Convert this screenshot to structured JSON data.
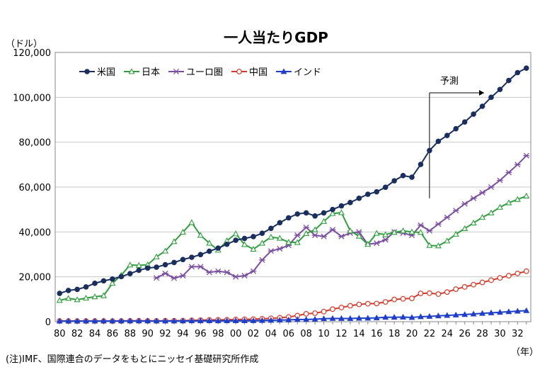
{
  "chart_data": {
    "type": "line",
    "title": "一人当たりGDP",
    "ylabel": "（ドル）",
    "xlabel": "（年）",
    "note": "(注)IMF、国際連合のデータをもとにニッセイ基礎研究所作成",
    "forecast_label": "予測",
    "forecast_start": 2022,
    "ylim": [
      0,
      120000
    ],
    "yticks": [
      0,
      20000,
      40000,
      60000,
      80000,
      100000,
      120000
    ],
    "ytick_labels": [
      "0",
      "20,000",
      "40,000",
      "60,000",
      "80,000",
      "100,000",
      "120,000"
    ],
    "xlim": [
      1980,
      2033
    ],
    "xticks": [
      1980,
      1982,
      1984,
      1986,
      1988,
      1990,
      1992,
      1994,
      1996,
      1998,
      2000,
      2002,
      2004,
      2006,
      2008,
      2010,
      2012,
      2014,
      2016,
      2018,
      2020,
      2022,
      2024,
      2026,
      2028,
      2030,
      2032
    ],
    "xtick_labels": [
      "80",
      "82",
      "84",
      "86",
      "88",
      "90",
      "92",
      "94",
      "96",
      "98",
      "00",
      "02",
      "04",
      "06",
      "08",
      "10",
      "12",
      "14",
      "16",
      "18",
      "20",
      "22",
      "24",
      "26",
      "28",
      "30",
      "32"
    ],
    "grid": "y",
    "legend_placement": "top-left",
    "series": [
      {
        "name": "米国",
        "color": "#1a2f5e",
        "marker": "circle-filled",
        "x": [
          1980,
          1981,
          1982,
          1983,
          1984,
          1985,
          1986,
          1987,
          1988,
          1989,
          1990,
          1991,
          1992,
          1993,
          1994,
          1995,
          1996,
          1997,
          1998,
          1999,
          2000,
          2001,
          2002,
          2003,
          2004,
          2005,
          2006,
          2007,
          2008,
          2009,
          2010,
          2011,
          2012,
          2013,
          2014,
          2015,
          2016,
          2017,
          2018,
          2019,
          2020,
          2021,
          2022,
          2023,
          2024,
          2025,
          2026,
          2027,
          2028,
          2029,
          2030,
          2031,
          2032,
          2033
        ],
        "values": [
          12600,
          13900,
          14400,
          15500,
          17100,
          18200,
          19000,
          20100,
          21400,
          22900,
          23900,
          24300,
          25400,
          26400,
          27700,
          28700,
          29900,
          31400,
          32800,
          34500,
          36300,
          37100,
          37900,
          39400,
          41600,
          44100,
          46300,
          48000,
          48500,
          47100,
          48500,
          50000,
          51600,
          53100,
          55000,
          56800,
          57900,
          59900,
          62800,
          65100,
          64400,
          70100,
          76300,
          80400,
          83000,
          86000,
          89000,
          92500,
          96000,
          100000,
          103500,
          107500,
          111000,
          113000
        ]
      },
      {
        "name": "日本",
        "color": "#2f9e3e",
        "marker": "triangle-open",
        "x": [
          1980,
          1981,
          1982,
          1983,
          1984,
          1985,
          1986,
          1987,
          1988,
          1989,
          1990,
          1991,
          1992,
          1993,
          1994,
          1995,
          1996,
          1997,
          1998,
          1999,
          2000,
          2001,
          2002,
          2003,
          2004,
          2005,
          2006,
          2007,
          2008,
          2009,
          2010,
          2011,
          2012,
          2013,
          2014,
          2015,
          2016,
          2017,
          2018,
          2019,
          2020,
          2021,
          2022,
          2023,
          2024,
          2025,
          2026,
          2027,
          2028,
          2029,
          2030,
          2031,
          2032,
          2033
        ],
        "values": [
          9500,
          10400,
          9800,
          10500,
          11100,
          11600,
          17100,
          20700,
          25300,
          25100,
          25400,
          28900,
          31500,
          35700,
          39900,
          44200,
          38500,
          35000,
          31900,
          36100,
          39200,
          34400,
          32300,
          35000,
          37700,
          37200,
          35400,
          35300,
          39300,
          41000,
          44700,
          48200,
          48600,
          40500,
          38100,
          34500,
          39400,
          38800,
          39800,
          40500,
          40000,
          39800,
          34000,
          33800,
          36000,
          39000,
          41500,
          44000,
          46500,
          48500,
          51000,
          53000,
          54500,
          56000
        ]
      },
      {
        "name": "ユーロ圏",
        "color": "#7b4fa0",
        "marker": "star",
        "x": [
          1991,
          1992,
          1993,
          1994,
          1995,
          1996,
          1997,
          1998,
          1999,
          2000,
          2001,
          2002,
          2003,
          2004,
          2005,
          2006,
          2007,
          2008,
          2009,
          2010,
          2011,
          2012,
          2013,
          2014,
          2015,
          2016,
          2017,
          2018,
          2019,
          2020,
          2021,
          2022,
          2023,
          2024,
          2025,
          2026,
          2027,
          2028,
          2029,
          2030,
          2031,
          2032,
          2033
        ],
        "values": [
          19500,
          21500,
          19400,
          20500,
          24500,
          24500,
          22000,
          22500,
          22000,
          20000,
          20500,
          22500,
          27500,
          31500,
          32500,
          34000,
          38500,
          42000,
          38500,
          38000,
          41000,
          38000,
          39500,
          40000,
          34500,
          35000,
          36500,
          40000,
          39500,
          38500,
          43000,
          40500,
          43500,
          46500,
          49500,
          52500,
          55000,
          57500,
          60000,
          63000,
          66500,
          70000,
          74000
        ]
      },
      {
        "name": "中国",
        "color": "#d43a2a",
        "marker": "circle-open",
        "x": [
          1980,
          1981,
          1982,
          1983,
          1984,
          1985,
          1986,
          1987,
          1988,
          1989,
          1990,
          1991,
          1992,
          1993,
          1994,
          1995,
          1996,
          1997,
          1998,
          1999,
          2000,
          2001,
          2002,
          2003,
          2004,
          2005,
          2006,
          2007,
          2008,
          2009,
          2010,
          2011,
          2012,
          2013,
          2014,
          2015,
          2016,
          2017,
          2018,
          2019,
          2020,
          2021,
          2022,
          2023,
          2024,
          2025,
          2026,
          2027,
          2028,
          2029,
          2030,
          2031,
          2032,
          2033
        ],
        "values": [
          310,
          290,
          280,
          300,
          310,
          290,
          280,
          300,
          370,
          410,
          350,
          360,
          420,
          440,
          470,
          610,
          700,
          770,
          830,
          870,
          960,
          1050,
          1150,
          1290,
          1510,
          1750,
          2100,
          2700,
          3500,
          3800,
          4500,
          5600,
          6300,
          7100,
          7700,
          8000,
          8100,
          8800,
          9900,
          10200,
          10400,
          12600,
          12700,
          12300,
          13200,
          14500,
          15500,
          16500,
          17500,
          18500,
          19500,
          20500,
          21500,
          22500
        ]
      },
      {
        "name": "インド",
        "color": "#1f3fc8",
        "marker": "triangle-filled",
        "x": [
          1980,
          1981,
          1982,
          1983,
          1984,
          1985,
          1986,
          1987,
          1988,
          1989,
          1990,
          1991,
          1992,
          1993,
          1994,
          1995,
          1996,
          1997,
          1998,
          1999,
          2000,
          2001,
          2002,
          2003,
          2004,
          2005,
          2006,
          2007,
          2008,
          2009,
          2010,
          2011,
          2012,
          2013,
          2014,
          2015,
          2016,
          2017,
          2018,
          2019,
          2020,
          2021,
          2022,
          2023,
          2024,
          2025,
          2026,
          2027,
          2028,
          2029,
          2030,
          2031,
          2032,
          2033
        ],
        "values": [
          270,
          280,
          290,
          290,
          280,
          300,
          310,
          340,
          350,
          340,
          370,
          310,
          320,
          300,
          350,
          380,
          400,
          420,
          410,
          440,
          440,
          450,
          470,
          550,
          620,
          710,
          790,
          1000,
          990,
          1100,
          1350,
          1450,
          1440,
          1440,
          1560,
          1590,
          1710,
          1960,
          1970,
          2050,
          1900,
          2230,
          2360,
          2600,
          2800,
          3000,
          3200,
          3450,
          3700,
          3950,
          4200,
          4450,
          4700,
          4950
        ]
      }
    ]
  }
}
